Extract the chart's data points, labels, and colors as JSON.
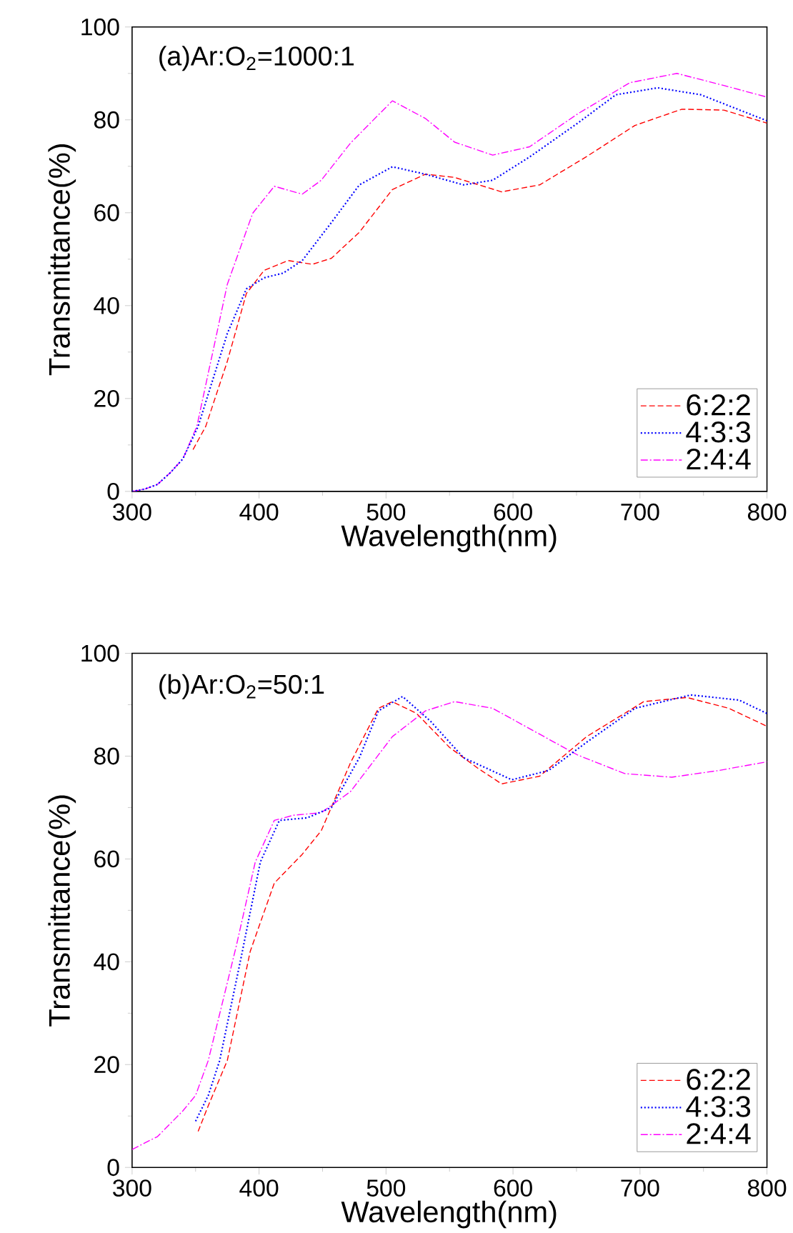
{
  "chart_data": [
    {
      "type": "line",
      "title": "(a)Ar:O$_{2}$=1000:1",
      "xlabel": "Wavelength(nm)",
      "ylabel": "Transmittance(%)",
      "xlim": [
        300,
        800
      ],
      "ylim": [
        0,
        100
      ],
      "xticks": [
        300,
        400,
        500,
        600,
        700,
        800
      ],
      "yticks": [
        0,
        20,
        40,
        60,
        80,
        100
      ],
      "legend": "bottom right",
      "grid": false,
      "series": [
        {
          "name": "6:2:2",
          "color": "#ff0000",
          "line_style": "dashed",
          "x": [
            348,
            358,
            375,
            390,
            404,
            423,
            442,
            457,
            479,
            505,
            531,
            554,
            591,
            621,
            658,
            696,
            733,
            766,
            800
          ],
          "values": [
            9,
            14,
            28,
            42.6,
            47.6,
            49.7,
            48.9,
            50.2,
            55.8,
            65,
            68.3,
            67.6,
            64.5,
            66,
            72.1,
            78.8,
            82.3,
            82.1,
            79.3
          ]
        },
        {
          "name": "4:3:3",
          "color": "#0000ff",
          "line_style": "dotted",
          "x": [
            300,
            310,
            320,
            330,
            340,
            352,
            375,
            390,
            404,
            419,
            434,
            457,
            479,
            505,
            531,
            561,
            584,
            613,
            651,
            681,
            714,
            748,
            800
          ],
          "values": [
            0,
            0.5,
            1.5,
            4,
            7,
            14,
            34,
            43.6,
            46,
            47,
            49.7,
            57.9,
            66,
            69.9,
            68.3,
            66,
            67,
            72,
            79.3,
            85.4,
            86.9,
            85.4,
            79.8
          ]
        },
        {
          "name": "2:4:4",
          "color": "#ff00ff",
          "line_style": "dashdot",
          "x": [
            300,
            310,
            320,
            330,
            340,
            351,
            375,
            395,
            412,
            434,
            449,
            472,
            505,
            531,
            554,
            584,
            613,
            651,
            692,
            729,
            766,
            800
          ],
          "values": [
            0,
            0.5,
            1.5,
            4,
            7,
            14,
            44.6,
            59.9,
            65.7,
            64,
            67,
            75,
            84.1,
            80.3,
            75.2,
            72.4,
            74.2,
            81.3,
            88,
            90,
            87.4,
            84.9
          ]
        }
      ]
    },
    {
      "type": "line",
      "title": "(b)Ar:O$_{2}$=50:1",
      "xlabel": "Wavelength(nm)",
      "ylabel": "Transmittance(%)",
      "xlim": [
        300,
        800
      ],
      "ylim": [
        0,
        100
      ],
      "xticks": [
        300,
        400,
        500,
        600,
        700,
        800
      ],
      "yticks": [
        0,
        20,
        40,
        60,
        80,
        100
      ],
      "legend": "bottom right",
      "grid": false,
      "series": [
        {
          "name": "6:2:2",
          "color": "#ff0000",
          "line_style": "dashed",
          "x": [
            352,
            360,
            375,
            393,
            412,
            434,
            449,
            472,
            494,
            505,
            524,
            550,
            572,
            591,
            621,
            658,
            703,
            737,
            770,
            800
          ],
          "values": [
            7,
            12,
            20.8,
            42,
            55.3,
            60.9,
            65.5,
            78.7,
            89.3,
            90.6,
            88.3,
            81.7,
            77.7,
            74.6,
            76.1,
            83.8,
            90.6,
            91.4,
            89.3,
            85.8
          ]
        },
        {
          "name": "4:3:3",
          "color": "#0000ff",
          "line_style": "dotted",
          "x": [
            350,
            360,
            369,
            386,
            401,
            416,
            438,
            457,
            479,
            494,
            513,
            535,
            561,
            599,
            628,
            658,
            696,
            740,
            778,
            800
          ],
          "values": [
            9,
            14,
            20.8,
            41,
            59.4,
            67.5,
            68,
            70,
            79.7,
            88.8,
            91.6,
            86.8,
            79.7,
            75.4,
            77.2,
            82.7,
            89.3,
            91.9,
            90.9,
            88.3
          ]
        },
        {
          "name": "2:4:4",
          "color": "#ff00ff",
          "line_style": "dashdot",
          "x": [
            300,
            320,
            340,
            350,
            360,
            382,
            397,
            412,
            427,
            449,
            472,
            505,
            531,
            554,
            584,
            617,
            651,
            688,
            725,
            762,
            800
          ],
          "values": [
            3.5,
            6,
            11,
            14,
            20.8,
            43,
            59.4,
            67.5,
            68.5,
            69,
            73.1,
            83.8,
            88.8,
            90.6,
            89.3,
            84.8,
            80.2,
            76.6,
            75.9,
            77.2,
            78.9
          ]
        }
      ]
    }
  ]
}
